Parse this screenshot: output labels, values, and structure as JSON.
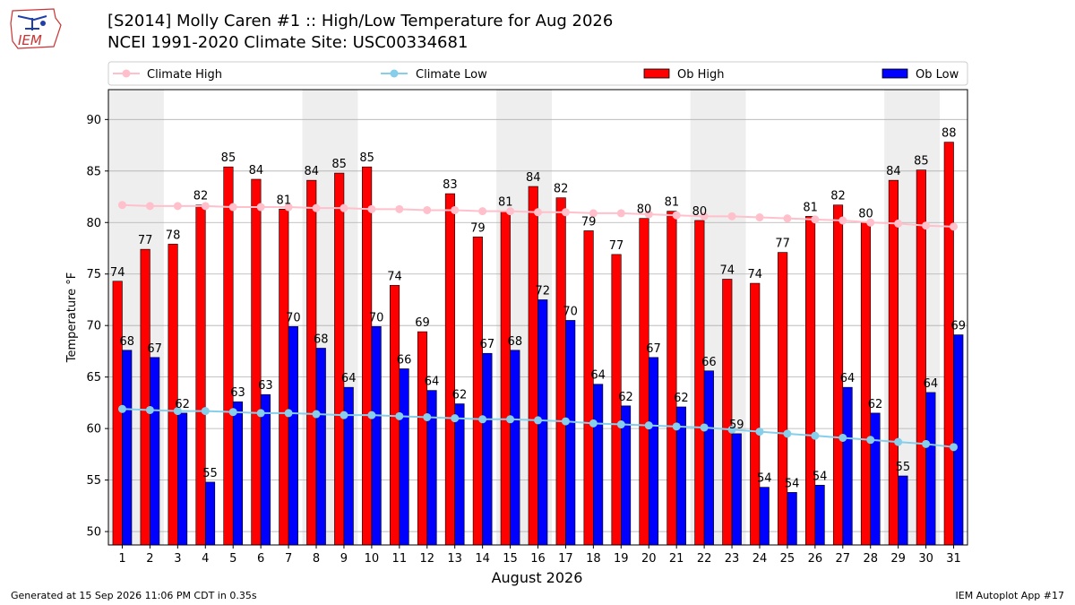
{
  "header": {
    "logo_text": "IEM",
    "title_line1": "[S2014] Molly Caren #1 :: High/Low Temperature for Aug 2026",
    "title_line2": "NCEI 1991-2020 Climate Site: USC00334681"
  },
  "footer": {
    "generated": "Generated at 15 Sep 2026 11:06 PM CDT in 0.35s",
    "app": "IEM Autoplot App #17"
  },
  "colors": {
    "ob_high": "#ff0000",
    "ob_low": "#0000ff",
    "climate_high": "#ffc0cb",
    "climate_low": "#87ceeb",
    "weekend_shade": "#eeeeee",
    "grid": "#b0b0b0"
  },
  "chart_data": {
    "type": "bar",
    "xlabel": "August 2026",
    "ylabel": "Temperature °F",
    "ylim": [
      48.7,
      92.9
    ],
    "yticks": [
      50,
      55,
      60,
      65,
      70,
      75,
      80,
      85,
      90
    ],
    "grid": true,
    "legend_position": "top",
    "categories": [
      "1",
      "2",
      "3",
      "4",
      "5",
      "6",
      "7",
      "8",
      "9",
      "10",
      "11",
      "12",
      "13",
      "14",
      "15",
      "16",
      "17",
      "18",
      "19",
      "20",
      "21",
      "22",
      "23",
      "24",
      "25",
      "26",
      "27",
      "28",
      "29",
      "30",
      "31"
    ],
    "weekend_shaded_days": [
      1,
      8,
      15,
      22,
      29
    ],
    "series": [
      {
        "name": "Ob High",
        "kind": "bar",
        "color": "#ff0000",
        "values": [
          74.3,
          77.4,
          77.9,
          81.7,
          85.4,
          84.2,
          81.3,
          84.1,
          84.8,
          85.4,
          73.9,
          69.4,
          82.8,
          78.6,
          81.1,
          83.5,
          82.4,
          79.2,
          76.9,
          80.4,
          81.1,
          80.2,
          74.5,
          74.1,
          77.1,
          80.6,
          81.7,
          80.0,
          84.1,
          85.1,
          87.8
        ],
        "labels": [
          "74",
          "77",
          "78",
          "82",
          "85",
          "84",
          "81",
          "84",
          "85",
          "85",
          "74",
          "69",
          "83",
          "79",
          "81",
          "84",
          "82",
          "79",
          "77",
          "80",
          "81",
          "80",
          "74",
          "74",
          "77",
          "81",
          "82",
          "80",
          "84",
          "85",
          "88"
        ]
      },
      {
        "name": "Ob Low",
        "kind": "bar",
        "color": "#0000ff",
        "values": [
          67.6,
          66.9,
          61.5,
          54.8,
          62.6,
          63.3,
          69.9,
          67.8,
          64.0,
          69.9,
          65.8,
          63.7,
          62.4,
          67.3,
          67.6,
          72.5,
          70.5,
          64.3,
          62.2,
          66.9,
          62.1,
          65.6,
          59.5,
          54.3,
          53.8,
          54.5,
          64.0,
          61.5,
          55.4,
          63.5,
          69.1
        ],
        "labels": [
          "68",
          "67",
          "62",
          "55",
          "63",
          "63",
          "70",
          "68",
          "64",
          "70",
          "66",
          "64",
          "62",
          "67",
          "68",
          "72",
          "70",
          "64",
          "62",
          "67",
          "62",
          "66",
          "59",
          "54",
          "54",
          "54",
          "64",
          "62",
          "55",
          "64",
          "69"
        ]
      },
      {
        "name": "Climate High",
        "kind": "line",
        "color": "#ffc0cb",
        "values": [
          81.7,
          81.6,
          81.6,
          81.6,
          81.5,
          81.5,
          81.5,
          81.4,
          81.4,
          81.3,
          81.3,
          81.2,
          81.2,
          81.1,
          81.1,
          81.0,
          81.0,
          80.9,
          80.9,
          80.8,
          80.7,
          80.6,
          80.6,
          80.5,
          80.4,
          80.3,
          80.2,
          80.0,
          79.9,
          79.7,
          79.6
        ]
      },
      {
        "name": "Climate Low",
        "kind": "line",
        "color": "#87ceeb",
        "values": [
          61.9,
          61.8,
          61.7,
          61.7,
          61.6,
          61.5,
          61.5,
          61.4,
          61.3,
          61.3,
          61.2,
          61.1,
          61.0,
          60.9,
          60.9,
          60.8,
          60.7,
          60.5,
          60.4,
          60.3,
          60.2,
          60.1,
          59.9,
          59.7,
          59.5,
          59.3,
          59.1,
          58.9,
          58.7,
          58.5,
          58.2
        ]
      }
    ]
  }
}
